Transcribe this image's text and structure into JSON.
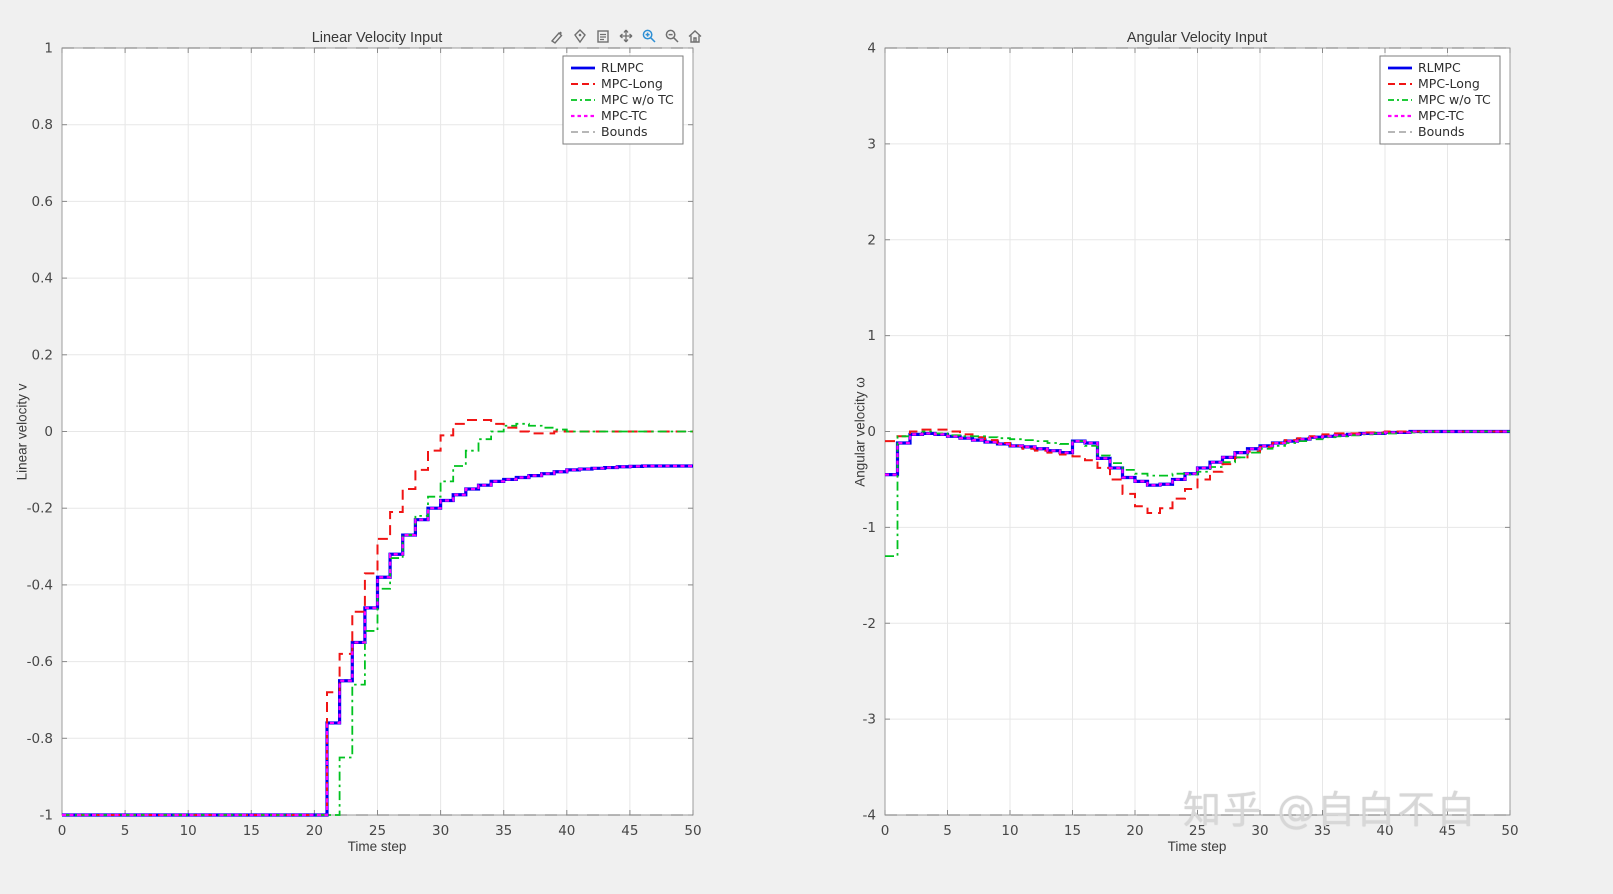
{
  "figure": {
    "background": "#f0f0f0",
    "watermark": {
      "text": "知乎 @自白不白"
    }
  },
  "toolbar": {
    "icons": [
      {
        "name": "brush",
        "active": false
      },
      {
        "name": "datatip",
        "active": false
      },
      {
        "name": "export",
        "active": false
      },
      {
        "name": "pan",
        "active": false
      },
      {
        "name": "zoom-in",
        "active": true
      },
      {
        "name": "zoom-out",
        "active": false
      },
      {
        "name": "home",
        "active": false
      }
    ],
    "active_color": "#2e8fd4",
    "idle_color": "#6f6f6f"
  },
  "chart_data": [
    {
      "type": "line",
      "title": "Linear Velocity Input",
      "xlabel": "Time step",
      "ylabel": "Linear velocity v",
      "xlim": [
        0,
        50
      ],
      "ylim": [
        -1,
        1
      ],
      "xticks": [
        0,
        5,
        10,
        15,
        20,
        25,
        30,
        35,
        40,
        45,
        50
      ],
      "yticks": [
        -1,
        -0.8,
        -0.6,
        -0.4,
        -0.2,
        0,
        0.2,
        0.4,
        0.6,
        0.8,
        1
      ],
      "grid": true,
      "legend_position": "northeast",
      "x_start": 0,
      "x_step": 1,
      "bounds": {
        "upper": 1,
        "lower": -1,
        "label": "Bounds",
        "color": "#8c8c8c"
      },
      "series": [
        {
          "name": "RLMPC",
          "color": "#0000ee",
          "style": "solid",
          "width": 3.2,
          "values": [
            -1,
            -1,
            -1,
            -1,
            -1,
            -1,
            -1,
            -1,
            -1,
            -1,
            -1,
            -1,
            -1,
            -1,
            -1,
            -1,
            -1,
            -1,
            -1,
            -1,
            -1,
            -0.76,
            -0.65,
            -0.55,
            -0.46,
            -0.38,
            -0.32,
            -0.27,
            -0.23,
            -0.2,
            -0.18,
            -0.165,
            -0.15,
            -0.14,
            -0.13,
            -0.125,
            -0.12,
            -0.115,
            -0.11,
            -0.105,
            -0.1,
            -0.098,
            -0.096,
            -0.094,
            -0.092,
            -0.091,
            -0.09,
            -0.09,
            -0.09,
            -0.09,
            -0.09
          ]
        },
        {
          "name": "MPC-Long",
          "color": "#f01414",
          "style": "dashed",
          "width": 2,
          "values": [
            -1,
            -1,
            -1,
            -1,
            -1,
            -1,
            -1,
            -1,
            -1,
            -1,
            -1,
            -1,
            -1,
            -1,
            -1,
            -1,
            -1,
            -1,
            -1,
            -1,
            -1,
            -0.68,
            -0.58,
            -0.47,
            -0.37,
            -0.28,
            -0.21,
            -0.15,
            -0.1,
            -0.05,
            -0.01,
            0.02,
            0.03,
            0.03,
            0.02,
            0.01,
            0,
            -0.005,
            -0.005,
            0,
            0,
            0,
            0,
            0,
            0,
            0,
            0,
            0,
            0,
            0,
            0
          ]
        },
        {
          "name": "MPC w/o TC",
          "color": "#00c21f",
          "style": "dashdot",
          "width": 1.8,
          "values": [
            -1,
            -1,
            -1,
            -1,
            -1,
            -1,
            -1,
            -1,
            -1,
            -1,
            -1,
            -1,
            -1,
            -1,
            -1,
            -1,
            -1,
            -1,
            -1,
            -1,
            -1,
            -1,
            -0.85,
            -0.66,
            -0.52,
            -0.41,
            -0.33,
            -0.27,
            -0.22,
            -0.17,
            -0.13,
            -0.09,
            -0.05,
            -0.02,
            0,
            0.015,
            0.02,
            0.015,
            0.01,
            0.005,
            0,
            0,
            0,
            0,
            0,
            0,
            0,
            0,
            0,
            0,
            0
          ]
        },
        {
          "name": "MPC-TC",
          "color": "#ff00ff",
          "style": "shortdash",
          "width": 2.2,
          "values": [
            -1,
            -1,
            -1,
            -1,
            -1,
            -1,
            -1,
            -1,
            -1,
            -1,
            -1,
            -1,
            -1,
            -1,
            -1,
            -1,
            -1,
            -1,
            -1,
            -1,
            -1,
            -0.76,
            -0.65,
            -0.55,
            -0.46,
            -0.38,
            -0.32,
            -0.27,
            -0.23,
            -0.2,
            -0.18,
            -0.165,
            -0.15,
            -0.14,
            -0.13,
            -0.125,
            -0.12,
            -0.115,
            -0.11,
            -0.105,
            -0.1,
            -0.098,
            -0.096,
            -0.094,
            -0.092,
            -0.091,
            -0.09,
            -0.09,
            -0.09,
            -0.09,
            -0.09
          ]
        }
      ]
    },
    {
      "type": "line",
      "title": "Angular Velocity Input",
      "xlabel": "Time step",
      "ylabel": "Angular velocity ω",
      "xlim": [
        0,
        50
      ],
      "ylim": [
        -4,
        4
      ],
      "xticks": [
        0,
        5,
        10,
        15,
        20,
        25,
        30,
        35,
        40,
        45,
        50
      ],
      "yticks": [
        -4,
        -3,
        -2,
        -1,
        0,
        1,
        2,
        3,
        4
      ],
      "grid": true,
      "legend_position": "northeast",
      "x_start": 0,
      "x_step": 1,
      "bounds": {
        "upper": 4,
        "lower": -4,
        "label": "Bounds",
        "color": "#8c8c8c"
      },
      "series": [
        {
          "name": "RLMPC",
          "color": "#0000ee",
          "style": "solid",
          "width": 3.2,
          "values": [
            -0.45,
            -0.12,
            -0.03,
            -0.02,
            -0.03,
            -0.05,
            -0.07,
            -0.09,
            -0.11,
            -0.13,
            -0.15,
            -0.16,
            -0.18,
            -0.2,
            -0.22,
            -0.1,
            -0.12,
            -0.28,
            -0.38,
            -0.48,
            -0.52,
            -0.56,
            -0.55,
            -0.5,
            -0.44,
            -0.38,
            -0.32,
            -0.27,
            -0.22,
            -0.18,
            -0.15,
            -0.12,
            -0.1,
            -0.08,
            -0.06,
            -0.05,
            -0.04,
            -0.03,
            -0.02,
            -0.02,
            -0.01,
            -0.01,
            0,
            0,
            0,
            0,
            0,
            0,
            0,
            0,
            0
          ]
        },
        {
          "name": "MPC-Long",
          "color": "#f01414",
          "style": "dashed",
          "width": 2,
          "values": [
            -0.1,
            -0.05,
            0,
            0.02,
            0.02,
            0,
            -0.03,
            -0.06,
            -0.09,
            -0.12,
            -0.15,
            -0.18,
            -0.2,
            -0.22,
            -0.24,
            -0.26,
            -0.3,
            -0.38,
            -0.5,
            -0.65,
            -0.78,
            -0.85,
            -0.8,
            -0.7,
            -0.6,
            -0.5,
            -0.42,
            -0.34,
            -0.27,
            -0.21,
            -0.16,
            -0.12,
            -0.09,
            -0.07,
            -0.05,
            -0.03,
            -0.02,
            -0.02,
            -0.01,
            -0.01,
            0,
            0,
            0,
            0,
            0,
            0,
            0,
            0,
            0,
            0,
            0
          ]
        },
        {
          "name": "MPC w/o TC",
          "color": "#00c21f",
          "style": "dashdot",
          "width": 1.8,
          "values": [
            -1.3,
            -0.05,
            -0.03,
            0,
            -0.02,
            -0.04,
            -0.05,
            -0.05,
            -0.06,
            -0.07,
            -0.08,
            -0.09,
            -0.1,
            -0.12,
            -0.13,
            -0.1,
            -0.15,
            -0.25,
            -0.33,
            -0.4,
            -0.44,
            -0.46,
            -0.46,
            -0.44,
            -0.45,
            -0.42,
            -0.37,
            -0.32,
            -0.27,
            -0.22,
            -0.18,
            -0.15,
            -0.12,
            -0.1,
            -0.08,
            -0.06,
            -0.05,
            -0.04,
            -0.03,
            -0.02,
            -0.02,
            -0.01,
            -0.01,
            0,
            0,
            0,
            0,
            0,
            0,
            0,
            0
          ]
        },
        {
          "name": "MPC-TC",
          "color": "#ff00ff",
          "style": "shortdash",
          "width": 2.2,
          "values": [
            -0.45,
            -0.12,
            -0.03,
            -0.02,
            -0.03,
            -0.05,
            -0.07,
            -0.09,
            -0.11,
            -0.13,
            -0.15,
            -0.16,
            -0.18,
            -0.2,
            -0.22,
            -0.1,
            -0.12,
            -0.28,
            -0.38,
            -0.48,
            -0.52,
            -0.56,
            -0.55,
            -0.5,
            -0.44,
            -0.38,
            -0.32,
            -0.27,
            -0.22,
            -0.18,
            -0.15,
            -0.12,
            -0.1,
            -0.08,
            -0.06,
            -0.05,
            -0.04,
            -0.03,
            -0.02,
            -0.02,
            -0.01,
            -0.01,
            0,
            0,
            0,
            0,
            0,
            0,
            0,
            0,
            0
          ]
        }
      ]
    }
  ]
}
